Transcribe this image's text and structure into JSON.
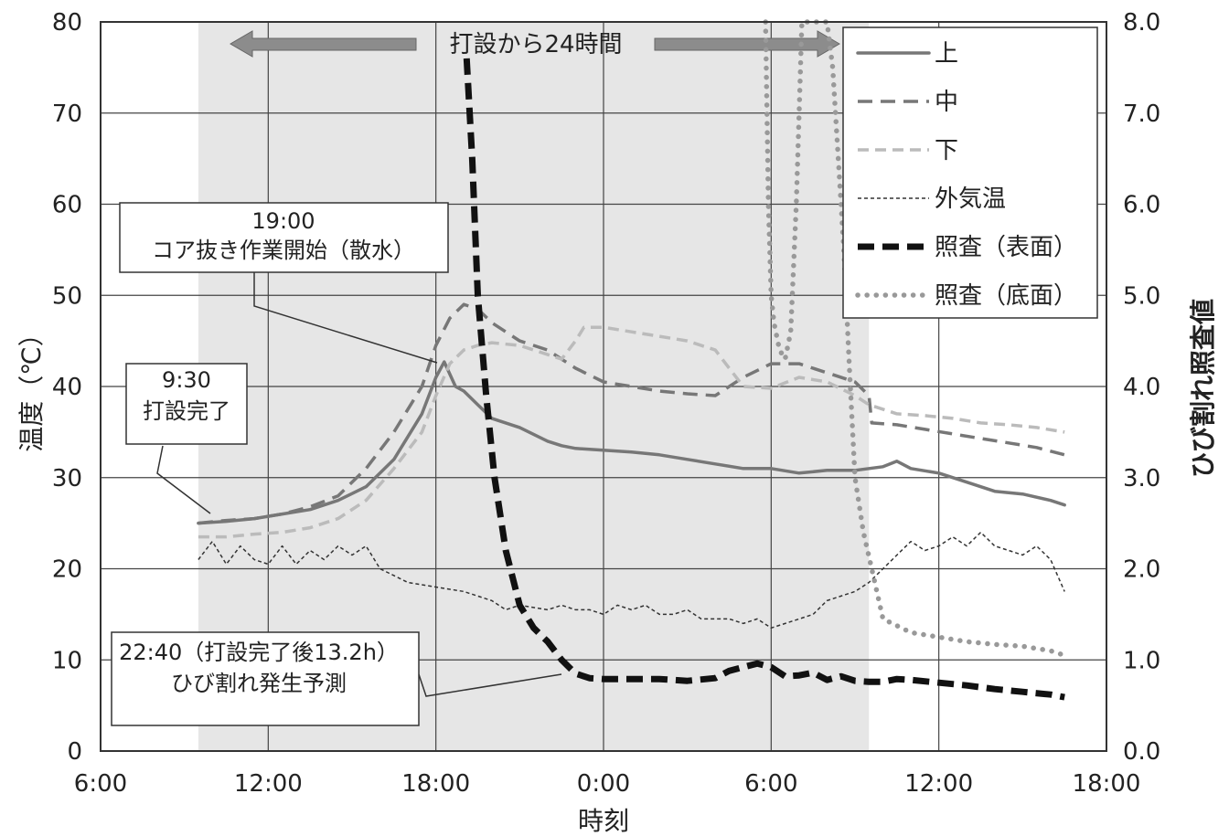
{
  "chart_data": {
    "type": "line",
    "xlabel": "時刻",
    "ylabel_left": "温度（℃）",
    "ylabel_right": "ひび割れ照査値",
    "xlim": [
      6,
      42
    ],
    "ylim_left": [
      0,
      80
    ],
    "ylim_right": [
      0.0,
      8.0
    ],
    "x_tick_positions": [
      6,
      12,
      18,
      24,
      30,
      36,
      42
    ],
    "x_tick_labels": [
      "6:00",
      "12:00",
      "18:00",
      "0:00",
      "6:00",
      "12:00",
      "18:00"
    ],
    "y_left_ticks": [
      "0",
      "10",
      "20",
      "30",
      "40",
      "50",
      "60",
      "70",
      "80"
    ],
    "y_right_ticks": [
      "0.0",
      "1.0",
      "2.0",
      "3.0",
      "4.0",
      "5.0",
      "6.0",
      "7.0",
      "8.0"
    ],
    "grid": true,
    "shaded_region": [
      9.5,
      33.5
    ],
    "period_arrow_label": "打設から24時間",
    "legend_position": "top-right",
    "series": [
      {
        "name": "上",
        "axis": "left",
        "style": "solid",
        "color": "#777777",
        "x": [
          9.5,
          10.5,
          11.5,
          12.5,
          13.5,
          14.5,
          15.5,
          16.5,
          17.5,
          18.0,
          18.3,
          18.7,
          19.0,
          19.5,
          20.0,
          21.0,
          22.0,
          22.5,
          23.0,
          24.0,
          25.0,
          26.0,
          27.0,
          28.0,
          29.0,
          30.0,
          31.0,
          32.0,
          33.0,
          34.0,
          34.5,
          35.0,
          36.0,
          37.0,
          38.0,
          39.0,
          40.0,
          40.5
        ],
        "y": [
          25,
          25.2,
          25.5,
          26,
          26.5,
          27.5,
          29,
          32,
          37,
          41,
          42.7,
          40,
          39.5,
          38,
          36.5,
          35.5,
          34,
          33.5,
          33.2,
          33,
          32.8,
          32.5,
          32,
          31.5,
          31,
          31,
          30.5,
          30.8,
          30.8,
          31.2,
          31.8,
          31,
          30.5,
          29.5,
          28.5,
          28.2,
          27.5,
          27
        ]
      },
      {
        "name": "中",
        "axis": "left",
        "style": "dash",
        "color": "#777777",
        "x": [
          9.5,
          10.5,
          11.5,
          12.5,
          13.5,
          14.5,
          15.5,
          16.5,
          17.5,
          18.0,
          18.5,
          19.0,
          19.5,
          20.0,
          21.0,
          22.0,
          22.5,
          23.0,
          24.0,
          25.0,
          26.0,
          27.0,
          28.0,
          29.0,
          30.0,
          31.0,
          32.0,
          33.0,
          33.5,
          33.6,
          34.5,
          35.5,
          36.5,
          37.5,
          38.5,
          39.5,
          40.5
        ],
        "y": [
          25,
          25.3,
          25.5,
          26,
          26.8,
          28,
          31,
          35,
          40,
          44.5,
          47.5,
          49,
          48.5,
          47,
          45,
          44,
          43,
          42,
          40.5,
          40,
          39.5,
          39.2,
          39,
          41,
          42.5,
          42.5,
          41.5,
          40.5,
          39,
          36,
          35.8,
          35.3,
          34.8,
          34.3,
          33.8,
          33.3,
          32.5
        ]
      },
      {
        "name": "下",
        "axis": "left",
        "style": "dash-light",
        "color": "#bbbbbb",
        "x": [
          9.5,
          10.5,
          11.5,
          12.5,
          13.5,
          14.5,
          15.5,
          16.5,
          17.5,
          18.0,
          18.5,
          19.0,
          19.5,
          20.0,
          21.0,
          22.0,
          22.5,
          23.0,
          23.3,
          24.0,
          25.0,
          26.0,
          27.0,
          28.0,
          29.0,
          30.0,
          31.0,
          32.0,
          33.0,
          33.5,
          34.5,
          35.5,
          36.5,
          37.5,
          38.5,
          39.5,
          40.5
        ],
        "y": [
          23.5,
          23.5,
          23.8,
          24,
          24.5,
          25.5,
          27.5,
          31,
          35,
          39,
          42.5,
          44,
          44.5,
          44.8,
          44.5,
          43.5,
          43,
          45,
          46.5,
          46.5,
          46,
          45.5,
          45,
          44,
          40,
          39.8,
          41,
          40.5,
          39,
          38,
          37,
          36.8,
          36.5,
          36,
          35.8,
          35.5,
          35
        ]
      },
      {
        "name": "外気温",
        "axis": "left",
        "style": "fine-dash",
        "color": "#333333",
        "x": [
          9.5,
          10.0,
          10.5,
          11.0,
          11.5,
          12.0,
          12.5,
          13.0,
          13.5,
          14.0,
          14.5,
          15.0,
          15.5,
          16.0,
          17.0,
          18.0,
          19.0,
          20.0,
          20.5,
          21.0,
          22.0,
          22.5,
          23.0,
          23.5,
          24.0,
          24.5,
          25.0,
          25.5,
          26.0,
          26.5,
          27.0,
          27.5,
          28.0,
          28.5,
          29.0,
          29.5,
          30.0,
          30.5,
          31.0,
          31.5,
          32.0,
          32.5,
          33.0,
          33.5,
          34.0,
          34.5,
          35.0,
          35.5,
          36.0,
          36.5,
          37.0,
          37.5,
          38.0,
          38.5,
          39.0,
          39.5,
          40.0,
          40.5
        ],
        "y": [
          21,
          23,
          20.5,
          22.5,
          21,
          20.5,
          22.5,
          20.5,
          22,
          21,
          22.5,
          21.5,
          22.5,
          20,
          18.5,
          18,
          17.5,
          16.5,
          15.5,
          16,
          15.5,
          16,
          15.5,
          15.5,
          15,
          16,
          15.5,
          16,
          15,
          15,
          15.5,
          14.5,
          14.5,
          14.5,
          14,
          14.5,
          13.5,
          14,
          14.5,
          15,
          16.5,
          17,
          17.5,
          18.5,
          20,
          21.5,
          23,
          22,
          22.5,
          23.5,
          22.5,
          24,
          22.5,
          22,
          21.5,
          22.5,
          21,
          17.5
        ]
      },
      {
        "name": "照査（表面）",
        "axis": "right",
        "style": "bold-dash",
        "color": "#111111",
        "x": [
          19.1,
          19.3,
          19.5,
          19.8,
          20.1,
          20.5,
          21.0,
          21.5,
          22.0,
          22.5,
          23.0,
          23.5,
          24.0,
          25.0,
          26.0,
          27.0,
          28.0,
          28.5,
          29.0,
          29.5,
          30.0,
          30.5,
          31.0,
          31.5,
          32.0,
          32.5,
          33.0,
          33.5,
          34.0,
          34.5,
          35.0,
          36.0,
          37.0,
          38.0,
          39.0,
          40.0,
          40.5
        ],
        "y": [
          7.6,
          6.5,
          5.0,
          3.9,
          3.0,
          2.2,
          1.6,
          1.35,
          1.2,
          1.0,
          0.85,
          0.8,
          0.79,
          0.79,
          0.79,
          0.77,
          0.8,
          0.88,
          0.92,
          0.96,
          0.92,
          0.82,
          0.83,
          0.86,
          0.78,
          0.82,
          0.77,
          0.76,
          0.76,
          0.79,
          0.78,
          0.75,
          0.72,
          0.68,
          0.65,
          0.62,
          0.59
        ]
      },
      {
        "name": "照査（底面）",
        "axis": "right",
        "style": "dotted",
        "color": "#999999",
        "x": [
          29.8,
          29.9,
          30.0,
          30.1,
          30.3,
          30.5,
          30.7,
          30.9,
          31.0,
          31.1,
          32.0,
          32.2,
          32.4,
          32.6,
          32.8,
          33.0,
          33.3,
          33.6,
          34.0,
          35.0,
          36.0,
          37.0,
          38.0,
          39.0,
          40.0,
          40.5
        ],
        "y": [
          8.0,
          6.0,
          5.0,
          4.7,
          4.4,
          4.3,
          4.6,
          6.0,
          7.0,
          8.0,
          8.0,
          7.5,
          6.5,
          5.5,
          4.2,
          3.0,
          2.4,
          2.0,
          1.45,
          1.3,
          1.25,
          1.2,
          1.17,
          1.15,
          1.1,
          1.05
        ]
      }
    ]
  },
  "annotations": [
    {
      "id": "pour-end",
      "line1": "9:30",
      "line2": "打設完了"
    },
    {
      "id": "coring",
      "line1": "19:00",
      "line2": "コア抜き作業開始（散水）"
    },
    {
      "id": "crack",
      "line1": "22:40（打設完了後13.2h）",
      "line2": "ひび割れ発生予測"
    }
  ]
}
